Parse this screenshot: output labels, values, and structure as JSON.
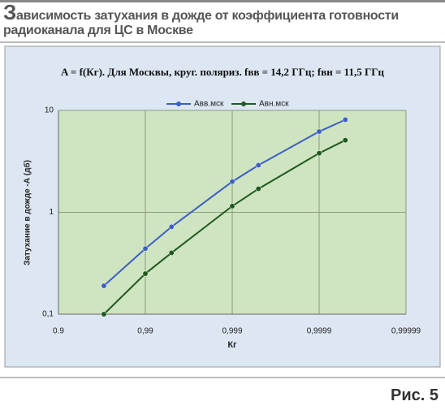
{
  "header": {
    "title": "Зависимость затухания в дожде от коэффициента готовности радиоканала для ЦС в Москве"
  },
  "caption": "Рис. 5",
  "chart_data": {
    "type": "line",
    "title": "A = f(Кг). Для Москвы, круг. поляриз. fвв = 14,2 ГГц; fвн = 11,5 ГГц",
    "x_label": "Кг",
    "y_label": "Затухание в дожде -А (дб)",
    "x_scale": "log(1-x)",
    "y_scale": "log",
    "grid": true,
    "legend": "top",
    "x": [
      0.97,
      0.99,
      0.995,
      0.999,
      0.9995,
      0.9999,
      0.99995
    ],
    "series": [
      {
        "name": "Авв.мск",
        "color": "#3b5fc4",
        "values": [
          0.19,
          0.44,
          0.72,
          2.0,
          2.9,
          6.2,
          8.1
        ]
      },
      {
        "name": "Авн.мск",
        "color": "#1f5a1f",
        "values": [
          0.1,
          0.25,
          0.4,
          1.15,
          1.7,
          3.8,
          5.1
        ]
      }
    ],
    "xlim": [
      0.9,
      0.99999
    ],
    "xticks": [
      0.9,
      {
        "value": 0.99,
        "label": "0,99"
      },
      {
        "value": 0.999,
        "label": "0,999"
      },
      {
        "value": 0.9999,
        "label": "0,9999"
      },
      {
        "value": 0.99999,
        "label": "0,99999"
      }
    ],
    "ylim": [
      0.1,
      10
    ],
    "yticks": [
      {
        "value": 0.1,
        "label": "0,1"
      },
      1,
      10
    ]
  }
}
